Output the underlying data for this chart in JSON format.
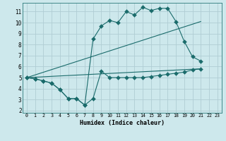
{
  "bg_color": "#cde8ec",
  "grid_color": "#b0cdd4",
  "line_color": "#1a6b6b",
  "xlabel": "Humidex (Indice chaleur)",
  "xlim": [
    -0.5,
    23.5
  ],
  "ylim": [
    1.8,
    11.8
  ],
  "yticks": [
    2,
    3,
    4,
    5,
    6,
    7,
    8,
    9,
    10,
    11
  ],
  "xticks": [
    0,
    1,
    2,
    3,
    4,
    5,
    6,
    7,
    8,
    9,
    10,
    11,
    12,
    13,
    14,
    15,
    16,
    17,
    18,
    19,
    20,
    21,
    22,
    23
  ],
  "line1_x": [
    0,
    1,
    2,
    3,
    4,
    5,
    6,
    7,
    8,
    9,
    10,
    11,
    12,
    13,
    14,
    15,
    16,
    17,
    18,
    19,
    20,
    21
  ],
  "line1_y": [
    5.0,
    4.9,
    4.7,
    4.5,
    3.9,
    3.1,
    3.1,
    2.5,
    3.1,
    5.6,
    5.0,
    5.0,
    5.0,
    5.0,
    5.0,
    5.1,
    5.2,
    5.3,
    5.4,
    5.5,
    5.7,
    5.8
  ],
  "line2_x": [
    0,
    1,
    2,
    3,
    4,
    5,
    6,
    7,
    8,
    9,
    10,
    11,
    12,
    13,
    14,
    15,
    16,
    17,
    18,
    19,
    20,
    21
  ],
  "line2_y": [
    5.0,
    4.9,
    4.7,
    4.5,
    3.9,
    3.1,
    3.1,
    2.5,
    8.5,
    9.7,
    10.2,
    10.0,
    11.0,
    10.7,
    11.4,
    11.1,
    11.3,
    11.3,
    10.1,
    8.3,
    6.9,
    6.5
  ],
  "line3_x": [
    0,
    21
  ],
  "line3_y": [
    5.0,
    5.8
  ],
  "line4_x": [
    0,
    21
  ],
  "line4_y": [
    5.0,
    10.1
  ],
  "marker_size": 3.0
}
